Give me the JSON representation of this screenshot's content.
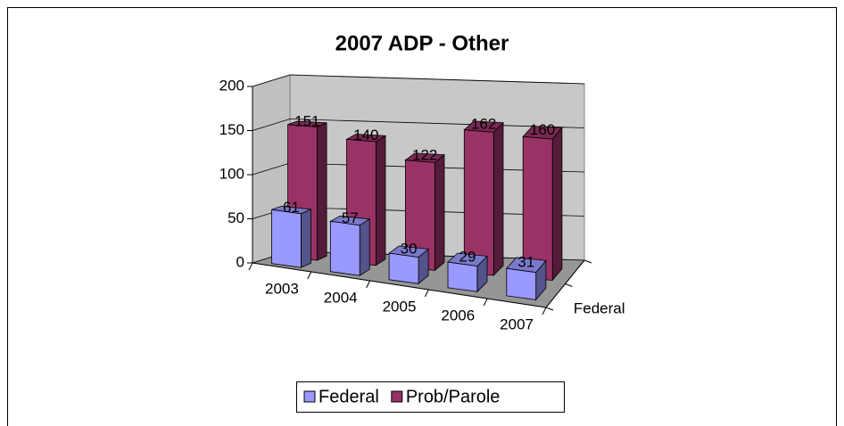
{
  "chart_data": {
    "type": "bar3d",
    "title": "2007 ADP - Other",
    "categories": [
      "2003",
      "2004",
      "2005",
      "2006",
      "2007"
    ],
    "series": [
      {
        "name": "Federal",
        "color": "#9999ff",
        "values": [
          61,
          57,
          30,
          29,
          31
        ]
      },
      {
        "name": "Prob/Parole",
        "color": "#993366",
        "values": [
          151,
          140,
          122,
          162,
          160
        ]
      }
    ],
    "ylim": [
      0,
      200
    ],
    "yticks": [
      0,
      50,
      100,
      150,
      200
    ],
    "grid": true,
    "legend": "bottom"
  }
}
